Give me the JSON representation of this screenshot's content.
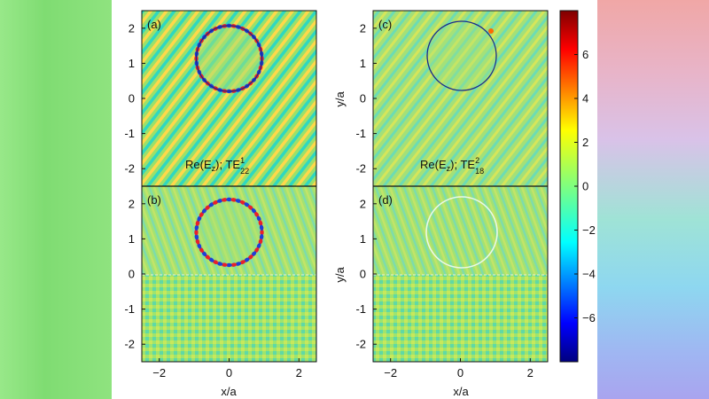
{
  "chart_data": {
    "type": "heatmap",
    "panels": [
      {
        "id": "a",
        "panel_label": "(a)",
        "annotation_main": "Re(E",
        "annotation_sub": "z",
        "annotation_mid": "); TE",
        "annotation_sup": "1",
        "annotation_sub2": "22",
        "xlim": [
          -2.5,
          2.5
        ],
        "ylim": [
          -2.5,
          2.5
        ],
        "yticks": [
          "-2",
          "-1",
          "0",
          "1",
          "2"
        ],
        "circle": {
          "cx": 0.0,
          "cy": 1.15,
          "r": 0.95,
          "color": "#1a2a8c"
        }
      },
      {
        "id": "b",
        "panel_label": "(b)",
        "xlim": [
          -2.5,
          2.5
        ],
        "ylim": [
          -2.5,
          2.5
        ],
        "yticks": [
          "-2",
          "-1",
          "0",
          "1",
          "2"
        ],
        "xticks": [
          "-2",
          "0",
          "2"
        ],
        "xlabel": "x/a",
        "circle": {
          "cx": 0.0,
          "cy": 1.2,
          "r": 0.95,
          "color": "#1a2a8c"
        }
      },
      {
        "id": "c",
        "panel_label": "(c)",
        "annotation_main": "Re(E",
        "annotation_sub": "z",
        "annotation_mid": "); TE",
        "annotation_sup": "2",
        "annotation_sub2": "18",
        "ylabel": "y/a",
        "xlim": [
          -2.5,
          2.5
        ],
        "ylim": [
          -2.5,
          2.5
        ],
        "yticks": [
          "-2",
          "-1",
          "0",
          "1",
          "2"
        ],
        "circle": {
          "cx": 0.0,
          "cy": 1.15,
          "r": 1.0,
          "color": "#1a2a8c"
        }
      },
      {
        "id": "d",
        "panel_label": "(d)",
        "ylabel": "y/a",
        "xlim": [
          -2.5,
          2.5
        ],
        "ylim": [
          -2.5,
          2.5
        ],
        "yticks": [
          "-2",
          "-1",
          "0",
          "1",
          "2"
        ],
        "xticks": [
          "-2",
          "0",
          "2"
        ],
        "xlabel": "x/a",
        "circle": {
          "cx": 0.0,
          "cy": 1.2,
          "r": 1.0,
          "color": "#e8f8e8"
        }
      }
    ],
    "colorbar": {
      "range": [
        -8,
        8
      ],
      "ticks": [
        "6",
        "4",
        "2",
        "0",
        "−2",
        "−4",
        "−6"
      ],
      "tick_values": [
        6,
        4,
        2,
        0,
        -2,
        -4,
        -6
      ],
      "colormap": "jet"
    }
  }
}
